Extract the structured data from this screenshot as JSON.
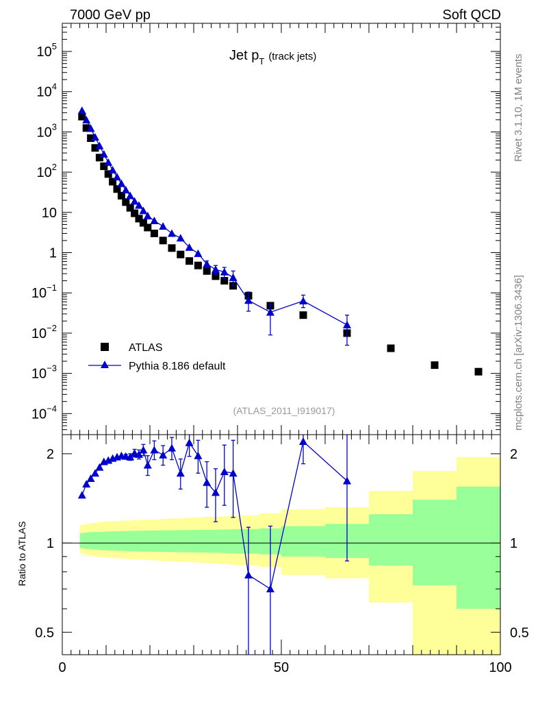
{
  "header": {
    "left": "7000 GeV pp",
    "right": "Soft QCD"
  },
  "side_labels": {
    "top": "Rivet 3.1.10,  1M events",
    "bottom": "mcplots.cern.ch [arXiv:1306.3436]"
  },
  "analysis_tag": "(ATLAS_2011_I919017)",
  "colors": {
    "data": "#000000",
    "mc": "#0000cc",
    "band_outer": "#ffff99",
    "band_inner": "#99ff99"
  },
  "chart_data": [
    {
      "type": "scatter",
      "title_main": "Jet p",
      "title_sub": "T",
      "title_paren": "(track jets)",
      "yscale": "log",
      "xlim": [
        0,
        100
      ],
      "ylim": [
        3e-05,
        500000
      ],
      "legend_position": "bottom-left",
      "y_ticks": [
        {
          "v": 0.0001,
          "m": "10",
          "e": "−4"
        },
        {
          "v": 0.001,
          "m": "10",
          "e": "−3"
        },
        {
          "v": 0.01,
          "m": "10",
          "e": "−2"
        },
        {
          "v": 0.1,
          "m": "10",
          "e": "−1"
        },
        {
          "v": 1,
          "m": "1",
          "e": ""
        },
        {
          "v": 10,
          "m": "10",
          "e": ""
        },
        {
          "v": 100,
          "m": "10",
          "e": "2"
        },
        {
          "v": 1000,
          "m": "10",
          "e": "3"
        },
        {
          "v": 10000,
          "m": "10",
          "e": "4"
        },
        {
          "v": 100000,
          "m": "10",
          "e": "5"
        }
      ],
      "series": [
        {
          "name": "ATLAS",
          "marker": "square",
          "x": [
            4.5,
            5.5,
            6.5,
            7.5,
            8.5,
            9.5,
            10.5,
            11.5,
            12.5,
            13.5,
            14.5,
            15.5,
            16.5,
            17.5,
            18.5,
            19.5,
            21,
            23,
            25,
            27,
            29,
            31,
            33,
            35,
            37,
            39,
            42.5,
            47.5,
            55,
            65,
            75,
            85,
            95
          ],
          "y": [
            2400,
            1250,
            700,
            400,
            230,
            140,
            90,
            58,
            38,
            26,
            18,
            13,
            9.5,
            7,
            5.5,
            4.2,
            3,
            2,
            1.3,
            0.9,
            0.62,
            0.48,
            0.35,
            0.26,
            0.2,
            0.15,
            0.085,
            0.048,
            0.028,
            0.01,
            0.0042,
            0.0016,
            0.0011
          ]
        },
        {
          "name": "Pythia 8.186 default",
          "marker": "triangle",
          "x": [
            4.5,
            5.5,
            6.5,
            7.5,
            8.5,
            9.5,
            10.5,
            11.5,
            12.5,
            13.5,
            14.5,
            15.5,
            16.5,
            17.5,
            18.5,
            19.5,
            21,
            23,
            25,
            27,
            29,
            31,
            33,
            35,
            37,
            39,
            42.5,
            47.5,
            55,
            65
          ],
          "y": [
            3400,
            1980,
            1220,
            740,
            450,
            280,
            175,
            113,
            76,
            52,
            36,
            26,
            19,
            15,
            11,
            8.2,
            6.2,
            4.5,
            3,
            2.3,
            1.35,
            0.95,
            0.52,
            0.38,
            0.33,
            0.24,
            0.065,
            0.033,
            0.063,
            0.016
          ],
          "err_up": [
            0,
            0,
            0,
            0,
            0,
            0,
            0,
            0,
            0,
            0,
            0,
            0,
            0,
            0,
            0,
            0,
            0,
            0,
            0,
            0,
            0,
            0,
            0.1,
            0.1,
            0.1,
            0.11,
            0.04,
            0.02,
            0.025,
            0.012
          ],
          "err_dn": [
            0,
            0,
            0,
            0,
            0,
            0,
            0,
            0,
            0,
            0,
            0,
            0,
            0,
            0,
            0,
            0,
            0,
            0,
            0,
            0,
            0,
            0,
            0.1,
            0.1,
            0.1,
            0.09,
            0.03,
            0.024,
            0.02,
            0.011
          ]
        }
      ]
    },
    {
      "type": "line",
      "ylabel": "Ratio to ATLAS",
      "yscale": "log",
      "xlim": [
        0,
        100
      ],
      "ylim": [
        0.42,
        2.32
      ],
      "x_ticks": [
        0,
        50,
        100
      ],
      "y_ticks": [
        0.5,
        1,
        2
      ],
      "reference_line": 1,
      "bands": {
        "edges": [
          4,
          5,
          6,
          7,
          8,
          9,
          10,
          11,
          12,
          13,
          14,
          15,
          16,
          17,
          18,
          19,
          20,
          22,
          24,
          26,
          28,
          30,
          32,
          34,
          36,
          38,
          40,
          45,
          50,
          60,
          70,
          80,
          90,
          100
        ],
        "outer": [
          [
            0.92,
            1.15
          ],
          [
            0.91,
            1.16
          ],
          [
            0.905,
            1.165
          ],
          [
            0.9,
            1.17
          ],
          [
            0.9,
            1.175
          ],
          [
            0.895,
            1.18
          ],
          [
            0.893,
            1.18
          ],
          [
            0.89,
            1.185
          ],
          [
            0.888,
            1.185
          ],
          [
            0.886,
            1.19
          ],
          [
            0.884,
            1.19
          ],
          [
            0.882,
            1.19
          ],
          [
            0.88,
            1.195
          ],
          [
            0.879,
            1.195
          ],
          [
            0.878,
            1.2
          ],
          [
            0.877,
            1.2
          ],
          [
            0.874,
            1.2
          ],
          [
            0.871,
            1.205
          ],
          [
            0.868,
            1.21
          ],
          [
            0.865,
            1.21
          ],
          [
            0.862,
            1.215
          ],
          [
            0.859,
            1.22
          ],
          [
            0.856,
            1.225
          ],
          [
            0.853,
            1.225
          ],
          [
            0.85,
            1.23
          ],
          [
            0.845,
            1.235
          ],
          [
            0.84,
            1.24
          ],
          [
            0.83,
            1.26
          ],
          [
            0.78,
            1.3
          ],
          [
            0.76,
            1.32
          ],
          [
            0.63,
            1.5
          ],
          [
            0.4,
            1.75
          ],
          [
            0.4,
            1.95
          ]
        ],
        "inner": [
          [
            0.96,
            1.08
          ],
          [
            0.955,
            1.085
          ],
          [
            0.952,
            1.088
          ],
          [
            0.95,
            1.09
          ],
          [
            0.948,
            1.09
          ],
          [
            0.946,
            1.092
          ],
          [
            0.944,
            1.093
          ],
          [
            0.943,
            1.094
          ],
          [
            0.942,
            1.095
          ],
          [
            0.941,
            1.096
          ],
          [
            0.94,
            1.097
          ],
          [
            0.939,
            1.098
          ],
          [
            0.938,
            1.099
          ],
          [
            0.937,
            1.1
          ],
          [
            0.936,
            1.1
          ],
          [
            0.935,
            1.101
          ],
          [
            0.934,
            1.102
          ],
          [
            0.933,
            1.103
          ],
          [
            0.932,
            1.104
          ],
          [
            0.931,
            1.105
          ],
          [
            0.93,
            1.106
          ],
          [
            0.929,
            1.107
          ],
          [
            0.928,
            1.108
          ],
          [
            0.927,
            1.109
          ],
          [
            0.925,
            1.11
          ],
          [
            0.923,
            1.112
          ],
          [
            0.921,
            1.114
          ],
          [
            0.915,
            1.12
          ],
          [
            0.9,
            1.14
          ],
          [
            0.89,
            1.16
          ],
          [
            0.84,
            1.25
          ],
          [
            0.72,
            1.4
          ],
          [
            0.6,
            1.55
          ]
        ]
      },
      "series": [
        {
          "name": "Pythia 8.186 default",
          "x": [
            4.5,
            5.5,
            6.5,
            7.5,
            8.5,
            9.5,
            10.5,
            11.5,
            12.5,
            13.5,
            14.5,
            15.5,
            16.5,
            17.5,
            18.5,
            19.5,
            21,
            23,
            25,
            27,
            29,
            31,
            33,
            35,
            37,
            39,
            42.5,
            47.5,
            55,
            65
          ],
          "y": [
            1.45,
            1.58,
            1.65,
            1.72,
            1.8,
            1.88,
            1.9,
            1.93,
            1.95,
            1.97,
            1.96,
            1.95,
            2.01,
            1.99,
            2.06,
            1.83,
            2.06,
            1.98,
            2.09,
            1.72,
            2.18,
            1.97,
            1.6,
            1.48,
            1.74,
            1.72,
            0.78,
            0.7,
            2.2,
            1.62
          ],
          "err_up": [
            0,
            0,
            0,
            0,
            0,
            0,
            0,
            0,
            0,
            0,
            0.03,
            0.05,
            0.06,
            0.07,
            0.09,
            0.14,
            0.15,
            0.15,
            0.18,
            0.2,
            0.22,
            0.25,
            0.28,
            0.3,
            0.4,
            0.5,
            0.35,
            0.44,
            0.3,
            0.9
          ],
          "err_dn": [
            0,
            0,
            0,
            0,
            0,
            0,
            0,
            0,
            0,
            0,
            0.03,
            0.05,
            0.06,
            0.07,
            0.09,
            0.14,
            0.15,
            0.15,
            0.18,
            0.2,
            0.22,
            0.25,
            0.28,
            0.3,
            0.4,
            0.5,
            0.5,
            0.5,
            0.35,
            0.75
          ]
        }
      ]
    }
  ]
}
